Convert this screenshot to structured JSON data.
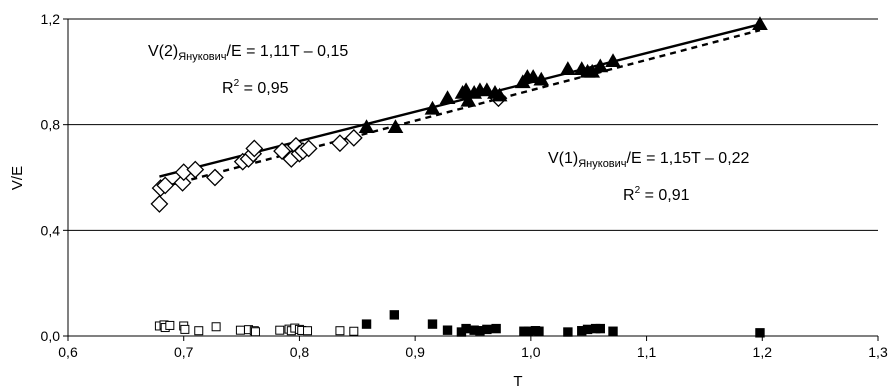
{
  "chart_data": {
    "type": "scatter",
    "xlabel": "T",
    "ylabel": "V/E",
    "xlim": [
      0.6,
      1.3
    ],
    "ylim": [
      0.0,
      1.2
    ],
    "x_ticks": [
      "0,6",
      "0,7",
      "0,8",
      "0,9",
      "1,0",
      "1,1",
      "1,2",
      "1,3"
    ],
    "y_ticks": [
      "0,0",
      "0,4",
      "0,8",
      "1,2"
    ],
    "horizontal_grid": true,
    "legend": "none",
    "series": [
      {
        "marker": "open-diamond",
        "color": "#000000",
        "points": [
          [
            0.679,
            0.5
          ],
          [
            0.68,
            0.56
          ],
          [
            0.684,
            0.57
          ],
          [
            0.699,
            0.58
          ],
          [
            0.7,
            0.62
          ],
          [
            0.71,
            0.63
          ],
          [
            0.727,
            0.6
          ],
          [
            0.751,
            0.66
          ],
          [
            0.756,
            0.67
          ],
          [
            0.76,
            0.69
          ],
          [
            0.761,
            0.71
          ],
          [
            0.785,
            0.7
          ],
          [
            0.793,
            0.67
          ],
          [
            0.797,
            0.72
          ],
          [
            0.8,
            0.69
          ],
          [
            0.803,
            0.7
          ],
          [
            0.808,
            0.71
          ],
          [
            0.835,
            0.73
          ],
          [
            0.847,
            0.75
          ],
          [
            0.972,
            0.9
          ]
        ]
      },
      {
        "marker": "filled-triangle",
        "color": "#000000",
        "points": [
          [
            0.858,
            0.79
          ],
          [
            0.883,
            0.79
          ],
          [
            0.915,
            0.86
          ],
          [
            0.928,
            0.9
          ],
          [
            0.941,
            0.92
          ],
          [
            0.944,
            0.93
          ],
          [
            0.946,
            0.89
          ],
          [
            0.951,
            0.92
          ],
          [
            0.956,
            0.93
          ],
          [
            0.962,
            0.93
          ],
          [
            0.969,
            0.92
          ],
          [
            0.973,
            0.91
          ],
          [
            0.993,
            0.96
          ],
          [
            0.997,
            0.98
          ],
          [
            1.002,
            0.98
          ],
          [
            1.009,
            0.97
          ],
          [
            1.032,
            1.01
          ],
          [
            1.044,
            1.01
          ],
          [
            1.049,
            1.0
          ],
          [
            1.053,
            1.0
          ],
          [
            1.06,
            1.02
          ],
          [
            1.071,
            1.04
          ],
          [
            1.198,
            1.18
          ]
        ]
      },
      {
        "marker": "open-square",
        "color": "#000000",
        "points": [
          [
            0.679,
            0.038
          ],
          [
            0.683,
            0.042
          ],
          [
            0.684,
            0.032
          ],
          [
            0.688,
            0.04
          ],
          [
            0.7,
            0.038
          ],
          [
            0.701,
            0.025
          ],
          [
            0.713,
            0.02
          ],
          [
            0.728,
            0.035
          ],
          [
            0.749,
            0.022
          ],
          [
            0.756,
            0.024
          ],
          [
            0.761,
            0.02
          ],
          [
            0.762,
            0.016
          ],
          [
            0.783,
            0.022
          ],
          [
            0.791,
            0.026
          ],
          [
            0.793,
            0.02
          ],
          [
            0.796,
            0.03
          ],
          [
            0.8,
            0.025
          ],
          [
            0.802,
            0.021
          ],
          [
            0.807,
            0.02
          ],
          [
            0.835,
            0.02
          ],
          [
            0.847,
            0.018
          ]
        ]
      },
      {
        "marker": "filled-square",
        "color": "#000000",
        "points": [
          [
            0.858,
            0.045
          ],
          [
            0.882,
            0.08
          ],
          [
            0.915,
            0.045
          ],
          [
            0.928,
            0.022
          ],
          [
            0.94,
            0.015
          ],
          [
            0.944,
            0.028
          ],
          [
            0.951,
            0.022
          ],
          [
            0.956,
            0.02
          ],
          [
            0.962,
            0.025
          ],
          [
            0.97,
            0.028
          ],
          [
            0.994,
            0.018
          ],
          [
            0.998,
            0.018
          ],
          [
            1.004,
            0.02
          ],
          [
            1.007,
            0.018
          ],
          [
            1.032,
            0.015
          ],
          [
            1.044,
            0.02
          ],
          [
            1.049,
            0.025
          ],
          [
            1.056,
            0.028
          ],
          [
            1.06,
            0.028
          ],
          [
            1.071,
            0.018
          ],
          [
            1.198,
            0.012
          ]
        ]
      }
    ],
    "trendlines": [
      {
        "style": "solid",
        "slope": 1.11,
        "intercept": -0.15,
        "x_range": [
          0.679,
          1.198
        ]
      },
      {
        "style": "dashed",
        "slope": 1.15,
        "intercept": -0.22,
        "x_range": [
          0.679,
          1.198
        ]
      }
    ],
    "annotations": [
      {
        "id": "eq2",
        "main": "V(2)",
        "sub": "Янукович",
        "rest": "/E = 1,11T – 0,15",
        "r2_label": "R",
        "r2_sup": "2",
        "r2_value": " = 0,95"
      },
      {
        "id": "eq1",
        "main": "V(1)",
        "sub": "Янукович",
        "rest": "/E = 1,15T – 0,22",
        "r2_label": "R",
        "r2_sup": "2",
        "r2_value": " = 0,91"
      }
    ]
  }
}
